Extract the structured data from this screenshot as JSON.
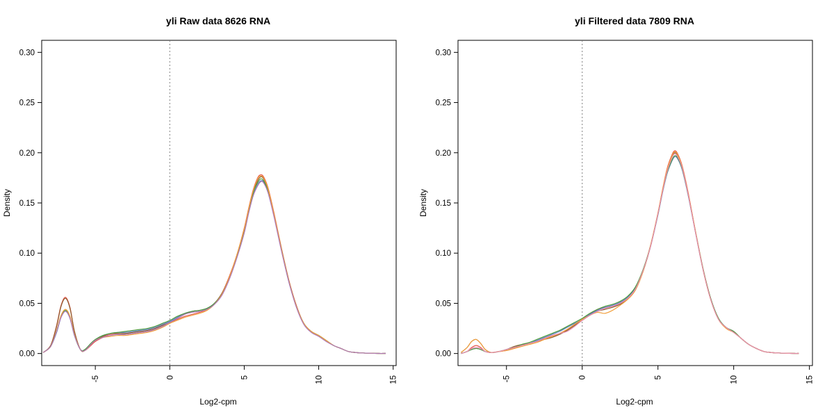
{
  "chart_data": [
    {
      "type": "line",
      "title": "yli  Raw data  8626  RNA",
      "xlabel": "Log2-cpm",
      "ylabel": "Density",
      "xlim": [
        -8.6,
        15.2
      ],
      "ylim": [
        -0.012,
        0.312
      ],
      "xticks": [
        "-5",
        "0",
        "5",
        "10",
        "15"
      ],
      "yticks": [
        "0.00",
        "0.05",
        "0.10",
        "0.15",
        "0.20",
        "0.25",
        "0.30"
      ],
      "vline_x": 0,
      "grid": false,
      "x": [
        -8.5,
        -8.0,
        -7.6,
        -7.3,
        -7.0,
        -6.7,
        -6.4,
        -6.0,
        -5.7,
        -5.3,
        -5.0,
        -4.5,
        -4.0,
        -3.5,
        -3.0,
        -2.5,
        -2.0,
        -1.5,
        -1.0,
        -0.5,
        0,
        0.5,
        1.0,
        1.5,
        2.0,
        2.5,
        3.0,
        3.5,
        4.0,
        4.5,
        5.0,
        5.3,
        5.6,
        5.9,
        6.1,
        6.3,
        6.6,
        7.0,
        7.5,
        8.0,
        8.5,
        9.0,
        9.5,
        10.0,
        10.5,
        11.0,
        11.5,
        12.0,
        12.5,
        13.0,
        13.5,
        14.0,
        14.5
      ],
      "series": [
        {
          "color": "#e4574d",
          "values": [
            0.001,
            0.008,
            0.028,
            0.048,
            0.056,
            0.046,
            0.022,
            0.004,
            0.003,
            0.008,
            0.012,
            0.016,
            0.019,
            0.019,
            0.019,
            0.02,
            0.021,
            0.022,
            0.024,
            0.027,
            0.031,
            0.034,
            0.037,
            0.039,
            0.041,
            0.044,
            0.05,
            0.06,
            0.077,
            0.098,
            0.125,
            0.145,
            0.163,
            0.175,
            0.178,
            0.176,
            0.165,
            0.14,
            0.105,
            0.073,
            0.048,
            0.03,
            0.022,
            0.018,
            0.013,
            0.008,
            0.005,
            0.002,
            0.001,
            0.0005,
            0.0003,
            0.0001,
            0.0001
          ]
        },
        {
          "color": "#8b5a2b",
          "values": [
            0.001,
            0.008,
            0.027,
            0.047,
            0.055,
            0.045,
            0.022,
            0.004,
            0.003,
            0.009,
            0.013,
            0.017,
            0.02,
            0.02,
            0.02,
            0.021,
            0.022,
            0.023,
            0.025,
            0.028,
            0.031,
            0.035,
            0.039,
            0.042,
            0.043,
            0.045,
            0.05,
            0.06,
            0.076,
            0.097,
            0.123,
            0.143,
            0.161,
            0.172,
            0.176,
            0.174,
            0.163,
            0.138,
            0.104,
            0.072,
            0.047,
            0.03,
            0.022,
            0.018,
            0.013,
            0.008,
            0.005,
            0.002,
            0.001,
            0.0005,
            0.0003,
            0.0001,
            0.0001
          ]
        },
        {
          "color": "#5b7fbf",
          "values": [
            0.001,
            0.007,
            0.021,
            0.036,
            0.042,
            0.035,
            0.018,
            0.004,
            0.004,
            0.01,
            0.014,
            0.018,
            0.02,
            0.021,
            0.021,
            0.022,
            0.023,
            0.024,
            0.026,
            0.029,
            0.032,
            0.036,
            0.04,
            0.042,
            0.043,
            0.045,
            0.05,
            0.059,
            0.075,
            0.096,
            0.121,
            0.141,
            0.158,
            0.168,
            0.172,
            0.171,
            0.161,
            0.137,
            0.103,
            0.071,
            0.047,
            0.03,
            0.022,
            0.018,
            0.013,
            0.008,
            0.005,
            0.002,
            0.001,
            0.0005,
            0.0003,
            0.0001,
            0.0001
          ]
        },
        {
          "color": "#4c9a3c",
          "values": [
            0.001,
            0.007,
            0.022,
            0.037,
            0.043,
            0.036,
            0.018,
            0.004,
            0.004,
            0.01,
            0.014,
            0.018,
            0.02,
            0.021,
            0.022,
            0.023,
            0.024,
            0.025,
            0.027,
            0.03,
            0.033,
            0.037,
            0.04,
            0.042,
            0.043,
            0.045,
            0.05,
            0.059,
            0.075,
            0.097,
            0.122,
            0.142,
            0.16,
            0.17,
            0.174,
            0.172,
            0.162,
            0.138,
            0.104,
            0.072,
            0.047,
            0.03,
            0.022,
            0.018,
            0.013,
            0.008,
            0.005,
            0.002,
            0.001,
            0.0005,
            0.0003,
            0.0001,
            0.0001
          ]
        },
        {
          "color": "#f2a03d",
          "values": [
            0.001,
            0.007,
            0.023,
            0.038,
            0.044,
            0.037,
            0.019,
            0.004,
            0.003,
            0.009,
            0.013,
            0.016,
            0.017,
            0.018,
            0.018,
            0.019,
            0.02,
            0.021,
            0.023,
            0.026,
            0.03,
            0.033,
            0.036,
            0.038,
            0.04,
            0.043,
            0.049,
            0.059,
            0.076,
            0.098,
            0.124,
            0.144,
            0.162,
            0.174,
            0.177,
            0.175,
            0.164,
            0.139,
            0.104,
            0.072,
            0.047,
            0.03,
            0.022,
            0.018,
            0.013,
            0.008,
            0.005,
            0.002,
            0.001,
            0.0005,
            0.0003,
            0.0001,
            0.0001
          ]
        },
        {
          "color": "#b07ab8",
          "values": [
            0.001,
            0.007,
            0.022,
            0.036,
            0.042,
            0.035,
            0.018,
            0.004,
            0.003,
            0.009,
            0.013,
            0.016,
            0.018,
            0.019,
            0.019,
            0.02,
            0.021,
            0.022,
            0.024,
            0.027,
            0.031,
            0.035,
            0.039,
            0.041,
            0.042,
            0.044,
            0.049,
            0.058,
            0.074,
            0.095,
            0.12,
            0.14,
            0.157,
            0.167,
            0.171,
            0.17,
            0.16,
            0.136,
            0.102,
            0.071,
            0.046,
            0.029,
            0.021,
            0.017,
            0.012,
            0.008,
            0.005,
            0.002,
            0.001,
            0.0005,
            0.0003,
            0.0001,
            0.0001
          ]
        }
      ]
    },
    {
      "type": "line",
      "title": "yli  Filtered data 7809  RNA",
      "xlabel": "Log2-cpm",
      "ylabel": "Density",
      "xlim": [
        -8.2,
        15.2
      ],
      "ylim": [
        -0.012,
        0.312
      ],
      "xticks": [
        "-5",
        "0",
        "5",
        "10",
        "15"
      ],
      "yticks": [
        "0.00",
        "0.05",
        "0.10",
        "0.15",
        "0.20",
        "0.25",
        "0.30"
      ],
      "vline_x": 0,
      "grid": false,
      "x": [
        -8.0,
        -7.6,
        -7.3,
        -7.0,
        -6.7,
        -6.4,
        -6.0,
        -5.5,
        -5.0,
        -4.5,
        -4.0,
        -3.5,
        -3.0,
        -2.5,
        -2.0,
        -1.5,
        -1.0,
        -0.5,
        0,
        0.5,
        1.0,
        1.5,
        2.0,
        2.5,
        3.0,
        3.5,
        4.0,
        4.5,
        5.0,
        5.3,
        5.6,
        5.9,
        6.1,
        6.3,
        6.6,
        7.0,
        7.5,
        8.0,
        8.5,
        9.0,
        9.5,
        10.0,
        10.5,
        11.0,
        11.5,
        12.0,
        12.5,
        13.0,
        13.5,
        14.0,
        14.3
      ],
      "series": [
        {
          "color": "#e4574d",
          "values": [
            0.0,
            0.002,
            0.006,
            0.008,
            0.006,
            0.002,
            0.001,
            0.002,
            0.003,
            0.005,
            0.008,
            0.01,
            0.012,
            0.015,
            0.017,
            0.02,
            0.024,
            0.029,
            0.034,
            0.039,
            0.044,
            0.046,
            0.047,
            0.05,
            0.055,
            0.064,
            0.082,
            0.107,
            0.14,
            0.163,
            0.184,
            0.197,
            0.202,
            0.199,
            0.187,
            0.16,
            0.12,
            0.083,
            0.054,
            0.034,
            0.026,
            0.022,
            0.015,
            0.009,
            0.005,
            0.002,
            0.001,
            0.0005,
            0.0003,
            0.0001,
            0.0001
          ]
        },
        {
          "color": "#8b5a2b",
          "values": [
            0.001,
            0.006,
            0.012,
            0.014,
            0.01,
            0.004,
            0.001,
            0.002,
            0.004,
            0.007,
            0.009,
            0.01,
            0.012,
            0.014,
            0.016,
            0.019,
            0.023,
            0.028,
            0.033,
            0.038,
            0.042,
            0.044,
            0.046,
            0.049,
            0.054,
            0.063,
            0.081,
            0.106,
            0.139,
            0.162,
            0.182,
            0.195,
            0.2,
            0.197,
            0.185,
            0.158,
            0.119,
            0.082,
            0.053,
            0.034,
            0.026,
            0.021,
            0.015,
            0.009,
            0.005,
            0.002,
            0.001,
            0.0005,
            0.0003,
            0.0001,
            0.0001
          ]
        },
        {
          "color": "#5b7fbf",
          "values": [
            0.0,
            0.002,
            0.004,
            0.005,
            0.004,
            0.002,
            0.001,
            0.002,
            0.004,
            0.006,
            0.008,
            0.01,
            0.013,
            0.016,
            0.019,
            0.022,
            0.026,
            0.03,
            0.034,
            0.039,
            0.043,
            0.046,
            0.048,
            0.051,
            0.056,
            0.065,
            0.082,
            0.106,
            0.138,
            0.16,
            0.179,
            0.191,
            0.196,
            0.194,
            0.183,
            0.157,
            0.119,
            0.082,
            0.054,
            0.035,
            0.026,
            0.022,
            0.015,
            0.009,
            0.005,
            0.002,
            0.001,
            0.0005,
            0.0003,
            0.0001,
            0.0001
          ]
        },
        {
          "color": "#4c9a3c",
          "values": [
            0.0,
            0.002,
            0.004,
            0.005,
            0.004,
            0.002,
            0.001,
            0.002,
            0.004,
            0.006,
            0.009,
            0.011,
            0.014,
            0.017,
            0.02,
            0.023,
            0.027,
            0.031,
            0.035,
            0.04,
            0.044,
            0.047,
            0.049,
            0.052,
            0.057,
            0.066,
            0.083,
            0.107,
            0.139,
            0.161,
            0.18,
            0.192,
            0.197,
            0.195,
            0.184,
            0.158,
            0.12,
            0.083,
            0.054,
            0.035,
            0.026,
            0.022,
            0.015,
            0.009,
            0.005,
            0.002,
            0.001,
            0.0005,
            0.0003,
            0.0001,
            0.0001
          ]
        },
        {
          "color": "#f2a03d",
          "values": [
            0.001,
            0.006,
            0.012,
            0.014,
            0.01,
            0.004,
            0.001,
            0.002,
            0.003,
            0.005,
            0.007,
            0.009,
            0.011,
            0.014,
            0.017,
            0.02,
            0.024,
            0.029,
            0.034,
            0.038,
            0.041,
            0.04,
            0.043,
            0.048,
            0.054,
            0.063,
            0.081,
            0.107,
            0.14,
            0.163,
            0.183,
            0.196,
            0.201,
            0.198,
            0.186,
            0.159,
            0.12,
            0.082,
            0.053,
            0.034,
            0.025,
            0.021,
            0.015,
            0.009,
            0.005,
            0.002,
            0.001,
            0.0005,
            0.0003,
            0.0001,
            0.0001
          ]
        },
        {
          "color": "#e88fb0",
          "values": [
            0.0,
            0.002,
            0.005,
            0.006,
            0.005,
            0.002,
            0.001,
            0.002,
            0.004,
            0.006,
            0.008,
            0.01,
            0.012,
            0.015,
            0.018,
            0.02,
            0.022,
            0.027,
            0.033,
            0.038,
            0.042,
            0.045,
            0.047,
            0.05,
            0.055,
            0.064,
            0.082,
            0.106,
            0.139,
            0.161,
            0.181,
            0.194,
            0.199,
            0.196,
            0.185,
            0.158,
            0.119,
            0.082,
            0.053,
            0.034,
            0.026,
            0.021,
            0.015,
            0.009,
            0.005,
            0.002,
            0.001,
            0.0005,
            0.0003,
            0.0001,
            0.0001
          ]
        }
      ]
    }
  ]
}
